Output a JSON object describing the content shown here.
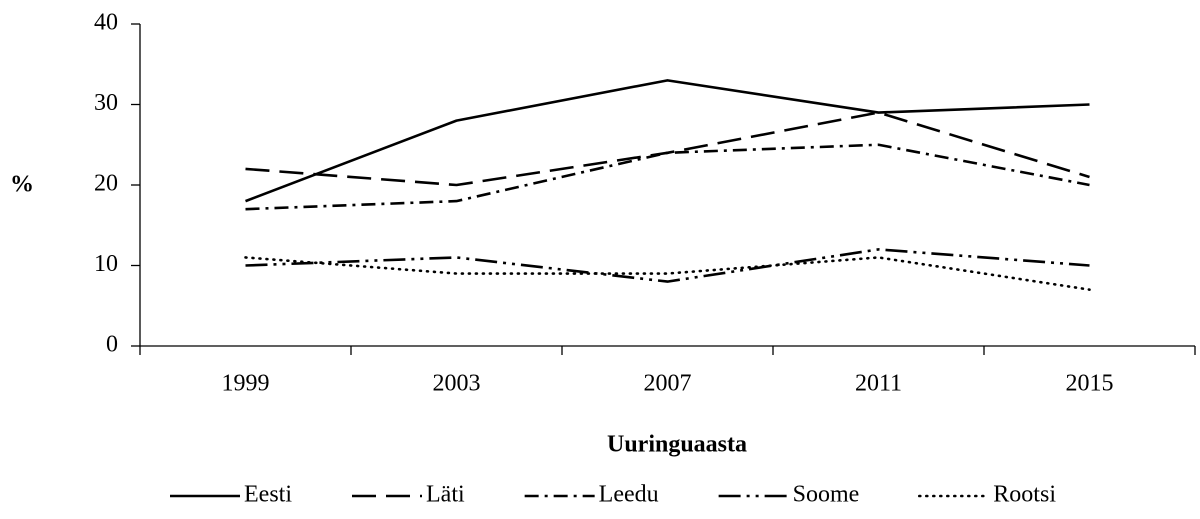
{
  "chart_data": {
    "type": "line",
    "y_label": "%",
    "x_label": "Uuringuaasta",
    "categories": [
      "1999",
      "2003",
      "2007",
      "2011",
      "2015"
    ],
    "series": [
      {
        "name": "Eesti",
        "color": "#000000",
        "dash": "none",
        "values": [
          18,
          28,
          33,
          29,
          30
        ]
      },
      {
        "name": "Läti",
        "color": "#000000",
        "dash": "24 10",
        "values": [
          22,
          20,
          24,
          29,
          21
        ]
      },
      {
        "name": "Leedu",
        "color": "#000000",
        "dash": "14 6 3 6",
        "values": [
          17,
          18,
          24,
          25,
          20
        ]
      },
      {
        "name": "Soome",
        "color": "#000000",
        "dash": "22 6 3 6 3 6",
        "values": [
          10,
          11,
          8,
          12,
          10
        ]
      },
      {
        "name": "Rootsi",
        "color": "#000000",
        "dash": "1 6",
        "values": [
          11,
          9,
          9,
          11,
          7
        ]
      }
    ],
    "ylim": [
      0,
      40
    ],
    "yticks": [
      0,
      10,
      20,
      30,
      40
    ],
    "grid": false,
    "legend": "bottom"
  }
}
